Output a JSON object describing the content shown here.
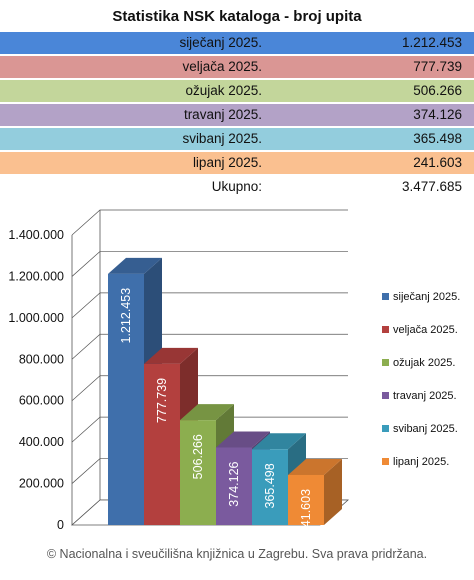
{
  "title": "Statistika NSK kataloga - broj upita",
  "rows": [
    {
      "label": "siječanj 2025.",
      "value": "1.212.453",
      "color": "#4a86d8"
    },
    {
      "label": "veljača 2025.",
      "value": "777.739",
      "color": "#da9694"
    },
    {
      "label": "ožujak 2025.",
      "value": "506.266",
      "color": "#c3d69b"
    },
    {
      "label": "travanj 2025.",
      "value": "374.126",
      "color": "#b3a2c7"
    },
    {
      "label": "svibanj 2025.",
      "value": "365.498",
      "color": "#93cddd"
    },
    {
      "label": "lipanj 2025.",
      "value": "241.603",
      "color": "#fac090"
    }
  ],
  "total": {
    "label": "Ukupno:",
    "value": "3.477.685"
  },
  "footer": "© Nacionalna i sveučilišna knjižnica u Zagrebu. Sva prava pridržana.",
  "chart_data": {
    "type": "bar",
    "categories": [
      "siječanj 2025.",
      "veljača 2025.",
      "ožujak 2025.",
      "travanj 2025.",
      "svibanj 2025.",
      "lipanj 2025."
    ],
    "values": [
      1212453,
      777739,
      506266,
      374126,
      365498,
      241603
    ],
    "value_labels": [
      "1.212.453",
      "777.739",
      "506.266",
      "374.126",
      "365.498",
      "241.603"
    ],
    "colors": [
      "#3f6fab",
      "#b3403e",
      "#8cae4f",
      "#7a5a9e",
      "#3a9cbb",
      "#ef8a35"
    ],
    "ylim": [
      0,
      1400000
    ],
    "yticks": [
      0,
      200000,
      400000,
      600000,
      800000,
      1000000,
      1200000,
      1400000
    ],
    "ytick_labels": [
      "0",
      "200.000",
      "400.000",
      "600.000",
      "800.000",
      "1.000.000",
      "1.200.000",
      "1.400.000"
    ],
    "legend": [
      "siječanj 2025.",
      "veljača 2025.",
      "ožujak 2025.",
      "travanj 2025.",
      "svibanj 2025.",
      "lipanj 2025."
    ],
    "legend_position": "right",
    "grid": true,
    "style": "3d"
  }
}
